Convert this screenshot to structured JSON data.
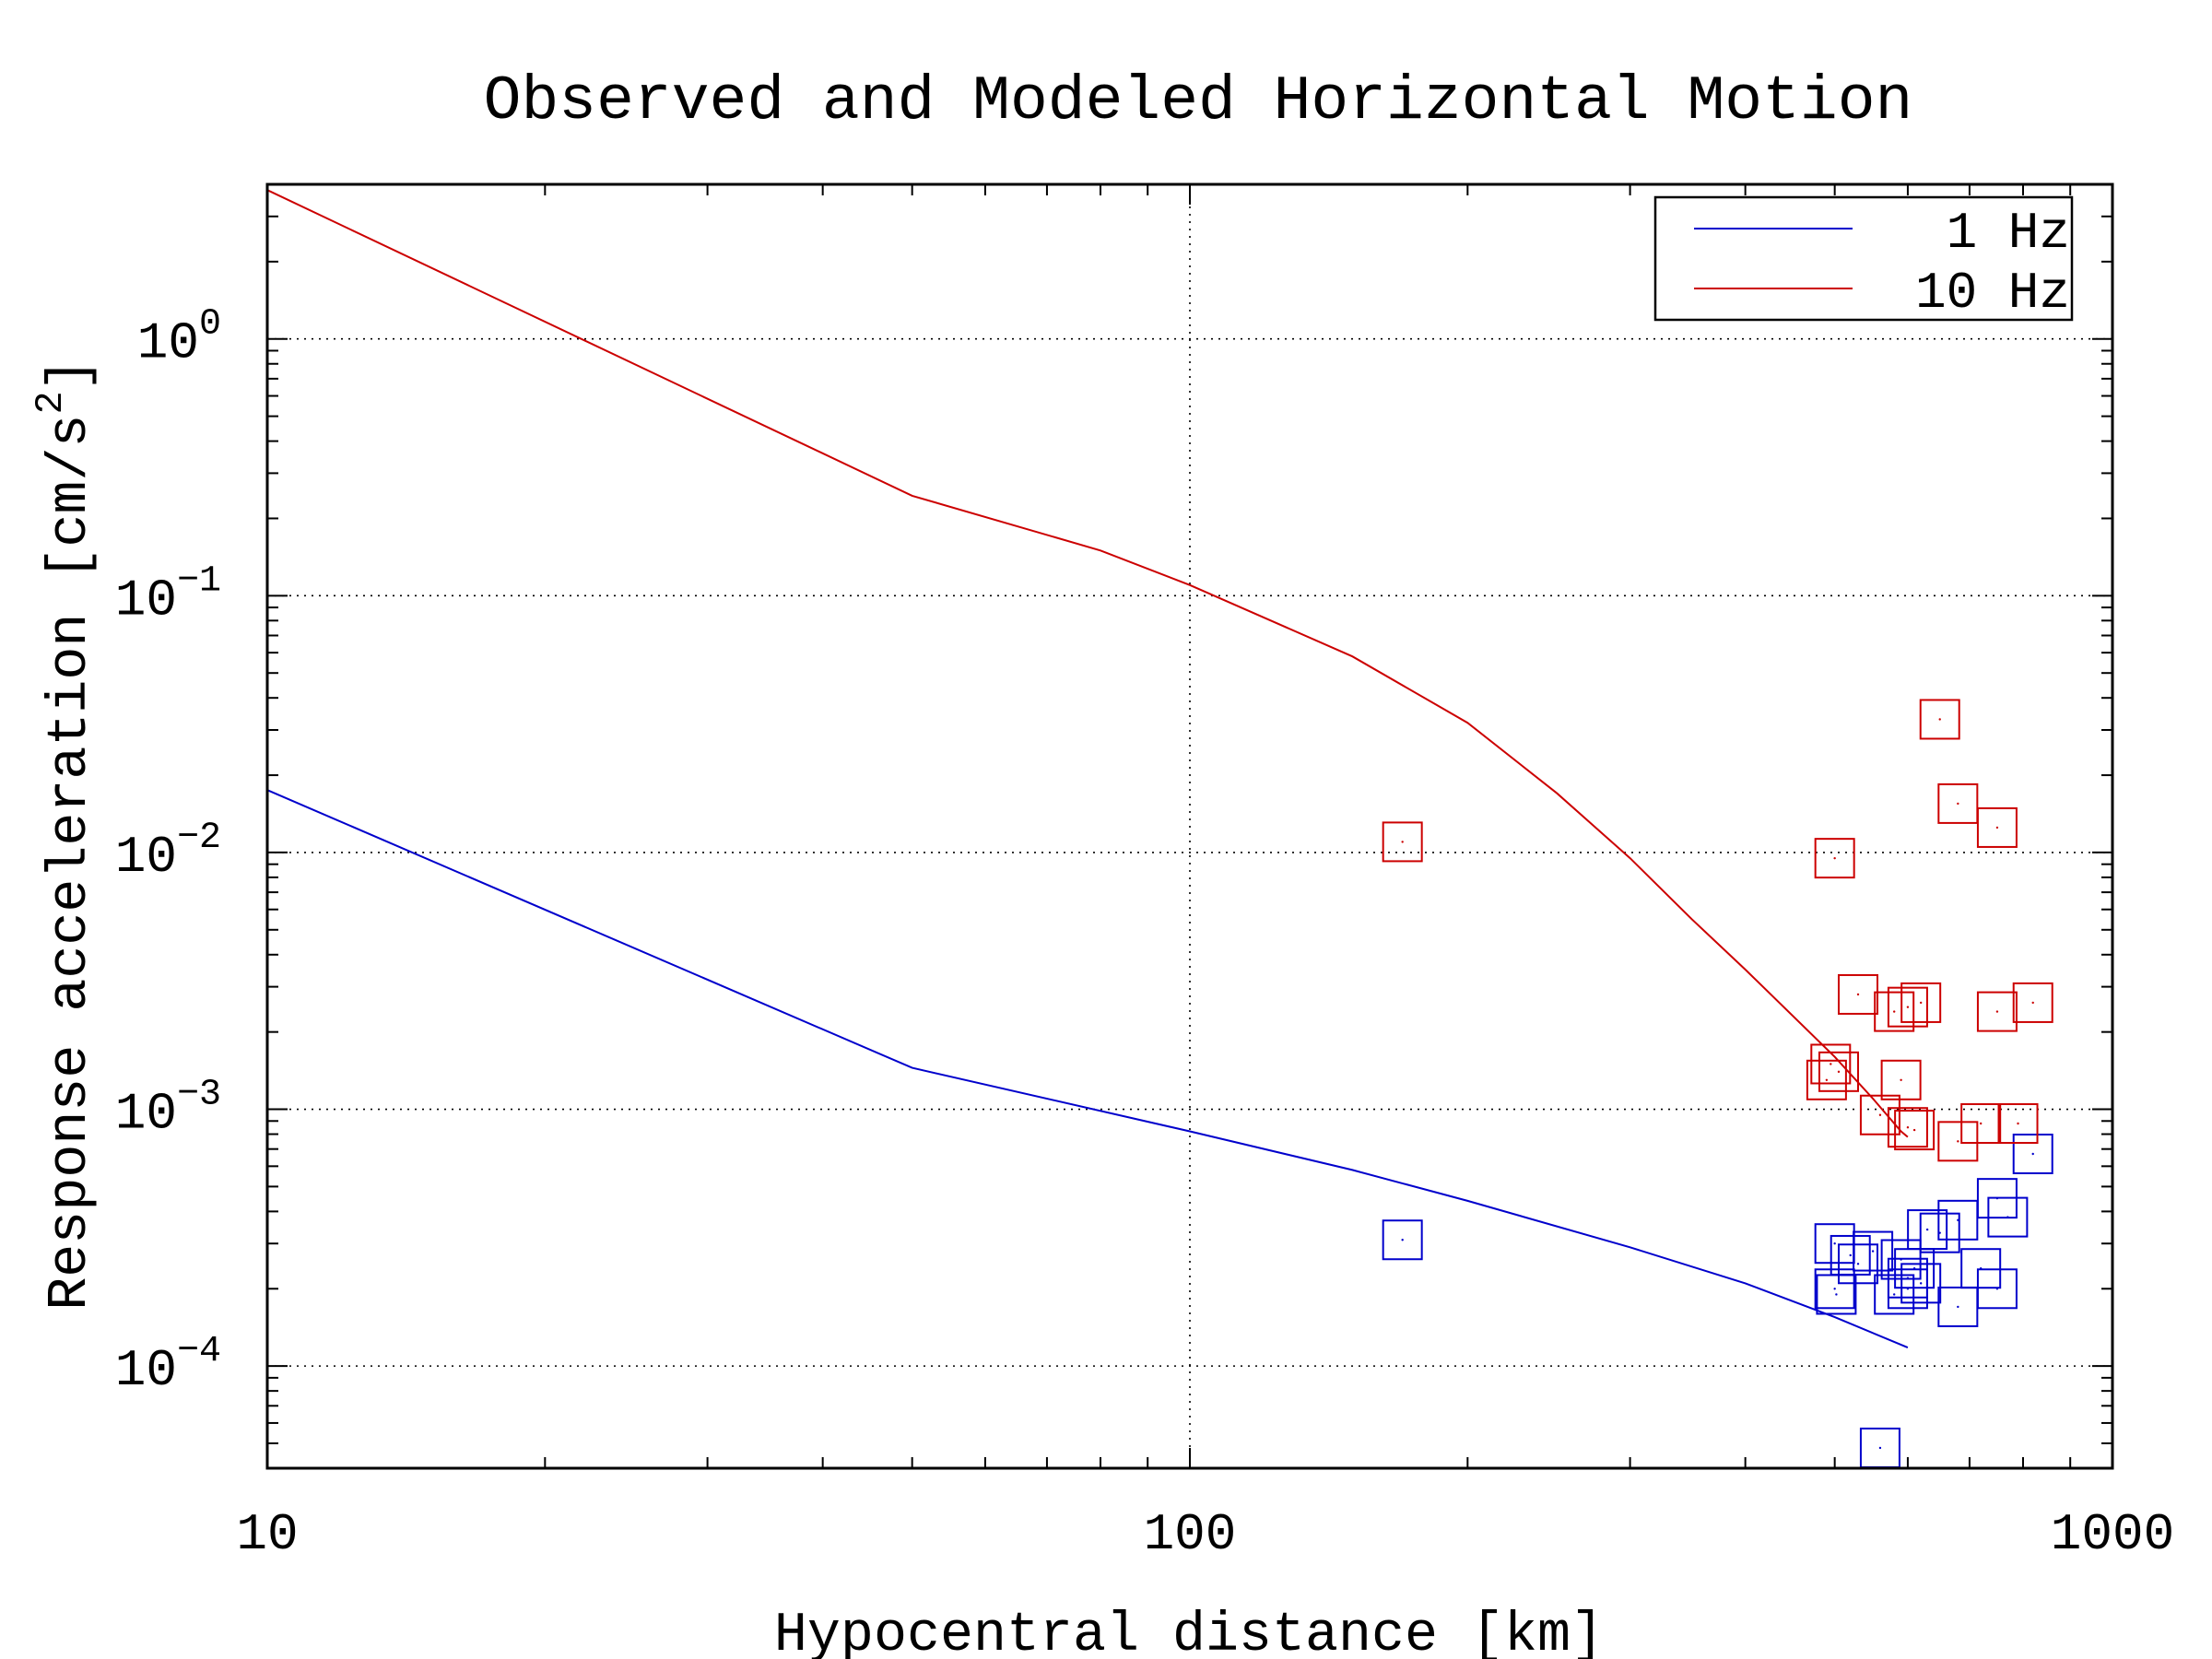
{
  "chart_data": {
    "type": "line",
    "title": "Observed and Modeled Horizontal Motion",
    "xlabel": "Hypocentral distance [km]",
    "ylabel": "Response acceleration [cm/s^2]",
    "ylabel_parts": {
      "text": "Response acceleration [cm/s",
      "sup": "2",
      "close": "]"
    },
    "xscale": "log",
    "yscale": "log",
    "xlim": [
      10,
      1000
    ],
    "ylim": [
      4e-05,
      4
    ],
    "grid": true,
    "legend_position": "top-right",
    "x_ticks": [
      {
        "value": 10,
        "label": "10"
      },
      {
        "value": 100,
        "label": "100"
      },
      {
        "value": 1000,
        "label": "1000"
      }
    ],
    "y_ticks": [
      {
        "value": 1,
        "base": "10",
        "exp": "0"
      },
      {
        "value": 0.1,
        "base": "10",
        "exp": "−1"
      },
      {
        "value": 0.01,
        "base": "10",
        "exp": "−2"
      },
      {
        "value": 0.001,
        "base": "10",
        "exp": "−3"
      },
      {
        "value": 0.0001,
        "base": "10",
        "exp": "−4"
      }
    ],
    "series": [
      {
        "name": "1 Hz",
        "color": "#0000cc",
        "model": [
          [
            10,
            0.0175
          ],
          [
            50,
            0.00145
          ],
          [
            100,
            0.00082
          ],
          [
            150,
            0.00058
          ],
          [
            200,
            0.00044
          ],
          [
            300,
            0.00029
          ],
          [
            400,
            0.00021
          ],
          [
            500,
            0.000155
          ],
          [
            600,
            0.000118
          ]
        ],
        "observed": [
          [
            170,
            0.00031
          ],
          [
            500,
            0.0003
          ],
          [
            500,
            0.0002
          ],
          [
            502,
            0.00019
          ],
          [
            520,
            0.00027
          ],
          [
            530,
            0.00025
          ],
          [
            550,
            0.00028
          ],
          [
            580,
            0.00019
          ],
          [
            590,
            0.00026
          ],
          [
            600,
            0.00022
          ],
          [
            600,
            0.0002
          ],
          [
            610,
            0.00024
          ],
          [
            620,
            0.00021
          ],
          [
            630,
            0.00034
          ],
          [
            650,
            0.00033
          ],
          [
            680,
            0.00037
          ],
          [
            680,
            0.00017
          ],
          [
            720,
            0.00024
          ],
          [
            750,
            0.00045
          ],
          [
            750,
            0.0002
          ],
          [
            770,
            0.00038
          ],
          [
            820,
            0.00067
          ],
          [
            560,
            4.8e-05
          ]
        ]
      },
      {
        "name": "10 Hz",
        "color": "#cc0000",
        "model": [
          [
            10,
            3.8
          ],
          [
            50,
            0.245
          ],
          [
            80,
            0.15
          ],
          [
            100,
            0.11
          ],
          [
            150,
            0.058
          ],
          [
            200,
            0.032
          ],
          [
            250,
            0.017
          ],
          [
            300,
            0.0095
          ],
          [
            350,
            0.0055
          ],
          [
            400,
            0.0035
          ],
          [
            500,
            0.0016
          ],
          [
            550,
            0.0011
          ],
          [
            590,
            0.00082
          ],
          [
            600,
            0.00078
          ]
        ],
        "observed": [
          [
            170,
            0.011
          ],
          [
            500,
            0.0095
          ],
          [
            490,
            0.0013
          ],
          [
            495,
            0.0015
          ],
          [
            505,
            0.0014
          ],
          [
            530,
            0.0028
          ],
          [
            580,
            0.0024
          ],
          [
            600,
            0.0025
          ],
          [
            620,
            0.0026
          ],
          [
            590,
            0.0013
          ],
          [
            560,
            0.00095
          ],
          [
            600,
            0.00085
          ],
          [
            610,
            0.00083
          ],
          [
            650,
            0.033
          ],
          [
            680,
            0.0155
          ],
          [
            680,
            0.00075
          ],
          [
            720,
            0.00088
          ],
          [
            750,
            0.0125
          ],
          [
            750,
            0.0024
          ],
          [
            790,
            0.00088
          ],
          [
            820,
            0.0026
          ]
        ]
      }
    ]
  }
}
